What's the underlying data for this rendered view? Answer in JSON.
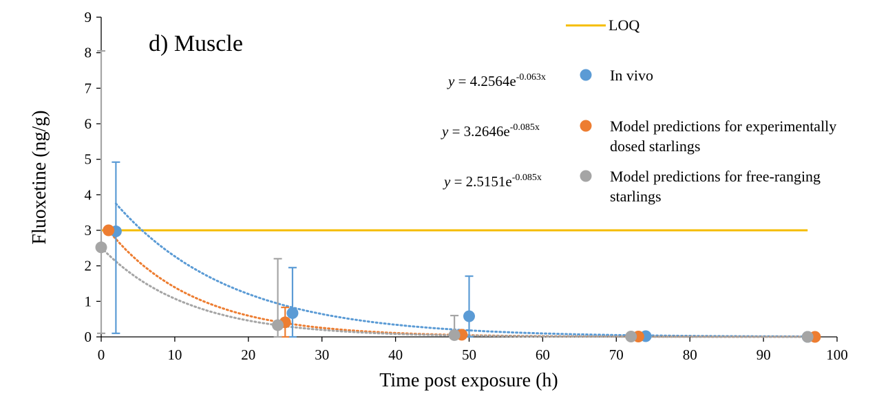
{
  "chart_data": {
    "type": "scatter",
    "title": "d) Muscle",
    "xlabel": "Time post exposure (h)",
    "ylabel": "Fluoxetine (ng/g)",
    "xlim": [
      0,
      100
    ],
    "ylim": [
      0,
      9
    ],
    "xticks": [
      "0",
      "10",
      "20",
      "30",
      "40",
      "50",
      "60",
      "70",
      "80",
      "90",
      "100"
    ],
    "yticks": [
      "0",
      "1",
      "2",
      "3",
      "4",
      "5",
      "6",
      "7",
      "8",
      "9"
    ],
    "grid": false,
    "legend_position": "top-right",
    "loq": {
      "name": "LOQ",
      "value": 3.0,
      "x_range": [
        0,
        96
      ],
      "color": "#f5bc00"
    },
    "series": [
      {
        "name": "In vivo",
        "color": "#5b9bd5",
        "x": [
          2,
          26,
          50,
          74,
          96
        ],
        "y": [
          2.97,
          0.67,
          0.58,
          0.02,
          0.0
        ],
        "err_upper": [
          1.95,
          1.28,
          1.13,
          0.0,
          0.0
        ],
        "err_lower": [
          2.87,
          0.67,
          0.58,
          0.0,
          0.0
        ],
        "trend": {
          "a": 4.2564,
          "b": -0.063,
          "x_start": 2,
          "x_end": 96
        },
        "equation": {
          "prefix": "y",
          "body": " = 4.2564e",
          "exponent": "-0.063x"
        }
      },
      {
        "name": "Model predictions for experimentally dosed starlings",
        "name_lines": [
          "Model predictions for experimentally",
          "dosed starlings"
        ],
        "color": "#ed7d31",
        "x": [
          1,
          25,
          49,
          73,
          97
        ],
        "y": [
          3.0,
          0.41,
          0.06,
          0.01,
          0.0
        ],
        "err_upper": [
          0.0,
          0.42,
          0.0,
          0.0,
          0.0
        ],
        "err_lower": [
          0.0,
          0.41,
          0.0,
          0.0,
          0.0
        ],
        "trend": {
          "a": 3.2646,
          "b": -0.085,
          "x_start": 1,
          "x_end": 97
        },
        "equation": {
          "prefix": "y",
          "body": " = 3.2646e",
          "exponent": "-0.085x"
        }
      },
      {
        "name": "Model predictions for free-ranging starlings",
        "name_lines": [
          "Model predictions for free-ranging",
          "starlings"
        ],
        "color": "#a5a5a5",
        "x": [
          0,
          24,
          48,
          72,
          96
        ],
        "y": [
          2.52,
          0.33,
          0.05,
          0.01,
          0.0
        ],
        "err_upper": [
          5.53,
          1.87,
          0.55,
          0.05,
          0.0
        ],
        "err_lower": [
          2.42,
          0.33,
          0.05,
          0.01,
          0.0
        ],
        "trend": {
          "a": 2.5151,
          "b": -0.085,
          "x_start": 0,
          "x_end": 96
        },
        "equation": {
          "prefix": "y",
          "body": " = 2.5151e",
          "exponent": "-0.085x"
        }
      }
    ]
  }
}
